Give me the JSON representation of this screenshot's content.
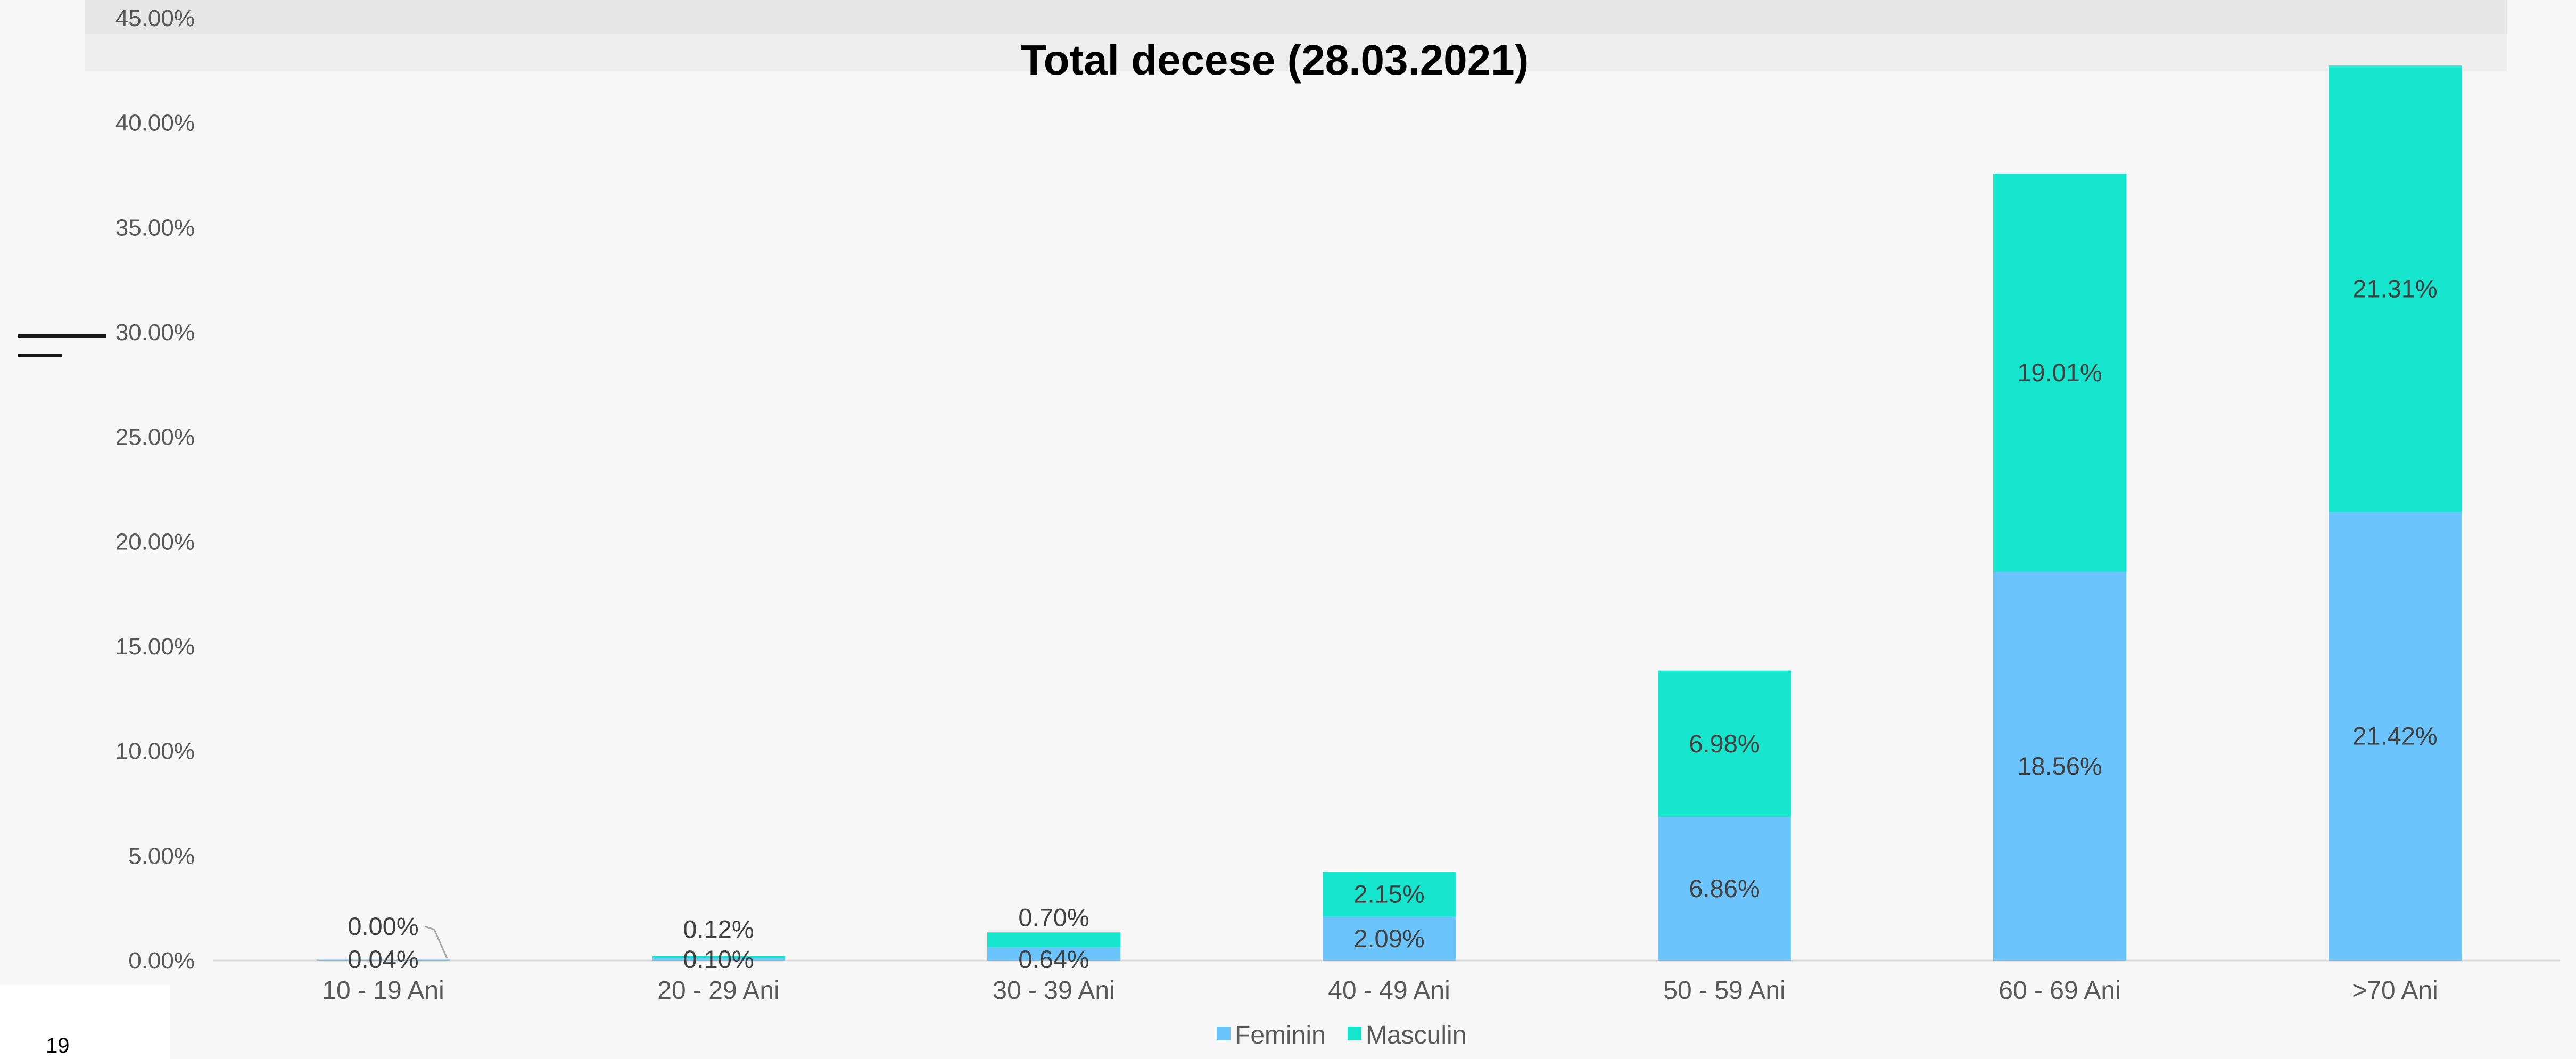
{
  "page_number": "19",
  "chart_data": {
    "type": "bar",
    "stacked": true,
    "title": "Total decese (28.03.2021)",
    "xlabel": "",
    "ylabel": "",
    "ylim": [
      0,
      45
    ],
    "ytick_step": 5,
    "yticks": [
      "0.00%",
      "5.00%",
      "10.00%",
      "15.00%",
      "20.00%",
      "25.00%",
      "30.00%",
      "35.00%",
      "40.00%",
      "45.00%"
    ],
    "categories": [
      "10 - 19 Ani",
      "20 - 29 Ani",
      "30 - 39 Ani",
      "40 - 49 Ani",
      "50 - 59 Ani",
      "60 - 69 Ani",
      ">70 Ani"
    ],
    "series": [
      {
        "name": "Feminin",
        "color": "#6bc5fc",
        "values": [
          0.04,
          0.1,
          0.64,
          2.09,
          6.86,
          18.56,
          21.42
        ],
        "labels": [
          "0.04%",
          "0.10%",
          "0.64%",
          "2.09%",
          "6.86%",
          "18.56%",
          "21.42%"
        ]
      },
      {
        "name": "Masculin",
        "color": "#17e6cf",
        "values": [
          0.0,
          0.12,
          0.7,
          2.15,
          6.98,
          19.01,
          21.31
        ],
        "labels": [
          "0.00%",
          "0.12%",
          "0.70%",
          "2.15%",
          "6.98%",
          "19.01%",
          "21.31%"
        ]
      }
    ],
    "grid": false,
    "legend": "bottom"
  }
}
